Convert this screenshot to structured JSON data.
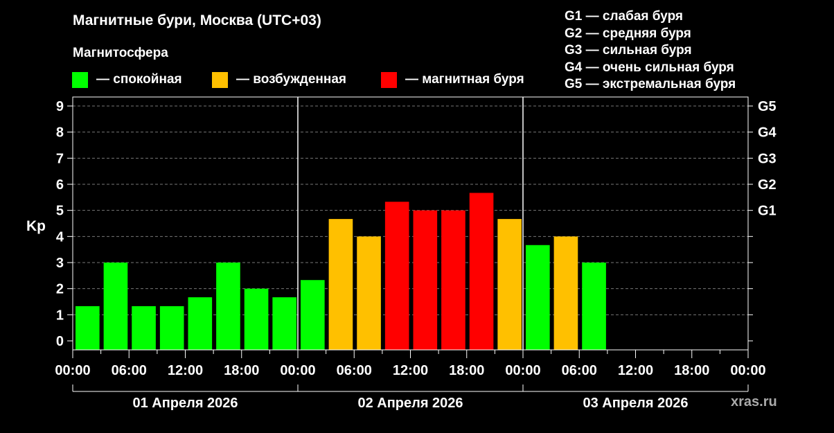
{
  "title": "Магнитные бури, Москва (UTC+03)",
  "subtitle": "Магнитосфера",
  "legend": [
    {
      "label": "— спокойная",
      "color": "#00ff00"
    },
    {
      "label": "— возбужденная",
      "color": "#ffc000"
    },
    {
      "label": "— магнитная буря",
      "color": "#ff0000"
    }
  ],
  "g_legend": [
    "G1 — слабая буря",
    "G2 — средняя буря",
    "G3 — сильная буря",
    "G4 — очень сильная буря",
    "G5 — экстремальная буря"
  ],
  "watermark": "xras.ru",
  "chart_data": {
    "type": "bar",
    "ylabel": "Kp",
    "ylim": [
      0,
      9
    ],
    "yticks": [
      0,
      1,
      2,
      3,
      4,
      5,
      6,
      7,
      8,
      9
    ],
    "right_ticks": [
      {
        "value": 5,
        "label": "G1"
      },
      {
        "value": 6,
        "label": "G2"
      },
      {
        "value": 7,
        "label": "G3"
      },
      {
        "value": 8,
        "label": "G4"
      },
      {
        "value": 9,
        "label": "G5"
      }
    ],
    "x_tick_labels": [
      "00:00",
      "06:00",
      "12:00",
      "18:00",
      "00:00",
      "06:00",
      "12:00",
      "18:00",
      "00:00",
      "06:00",
      "12:00",
      "18:00",
      "00:00"
    ],
    "days": [
      "01 Апреля 2026",
      "02 Апреля 2026",
      "03 Апреля 2026"
    ],
    "grid": true,
    "thresholds": {
      "quiet_below": 4,
      "storm_from": 5
    },
    "colors": {
      "quiet": "#00ff00",
      "active": "#ffc000",
      "storm": "#ff0000"
    },
    "values": [
      1.33,
      3,
      1.33,
      1.33,
      1.67,
      3,
      2,
      1.67,
      2.33,
      4.67,
      4,
      5.33,
      5,
      5,
      5.67,
      4.67,
      3.67,
      4,
      3
    ]
  }
}
